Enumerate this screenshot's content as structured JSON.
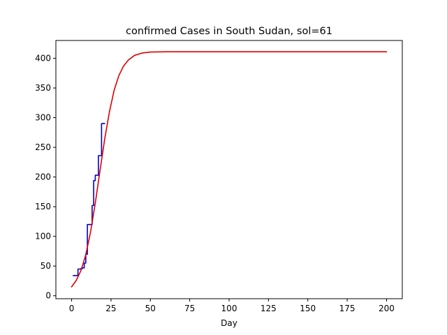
{
  "chart_data": {
    "type": "line",
    "title": "confirmed Cases in South Sudan, sol=61",
    "xlabel": "Day",
    "ylabel": "",
    "xlim": [
      -10,
      210
    ],
    "ylim": [
      -5,
      430
    ],
    "x_ticks": [
      0,
      25,
      50,
      75,
      100,
      125,
      150,
      175,
      200
    ],
    "y_ticks": [
      0,
      50,
      100,
      150,
      200,
      250,
      300,
      350,
      400
    ],
    "grid": false,
    "legend": "none",
    "series": [
      {
        "color": "#0000cc",
        "style": "step",
        "x": [
          1,
          2,
          3,
          4,
          5,
          6,
          7,
          8,
          9,
          10,
          11,
          12,
          13,
          14,
          15,
          16,
          17,
          18,
          19,
          20,
          21
        ],
        "y": [
          34,
          34,
          34,
          45,
          45,
          46,
          47,
          55,
          70,
          120,
          120,
          120,
          152,
          194,
          203,
          203,
          236,
          236,
          290,
          290,
          290
        ]
      },
      {
        "color": "#dd0000",
        "style": "logistic",
        "x": [
          0,
          3,
          6,
          9,
          12,
          15,
          18,
          21,
          24,
          27,
          30,
          33,
          36,
          40,
          45,
          50,
          60,
          80,
          100,
          150,
          200
        ],
        "y": [
          15,
          26,
          43,
          69,
          107,
          156,
          210,
          264,
          310,
          346,
          371,
          387,
          397,
          405,
          409,
          410.5,
          411,
          411,
          411,
          411,
          411
        ]
      }
    ]
  },
  "colors": {
    "axis": "#000000",
    "background": "#ffffff"
  }
}
